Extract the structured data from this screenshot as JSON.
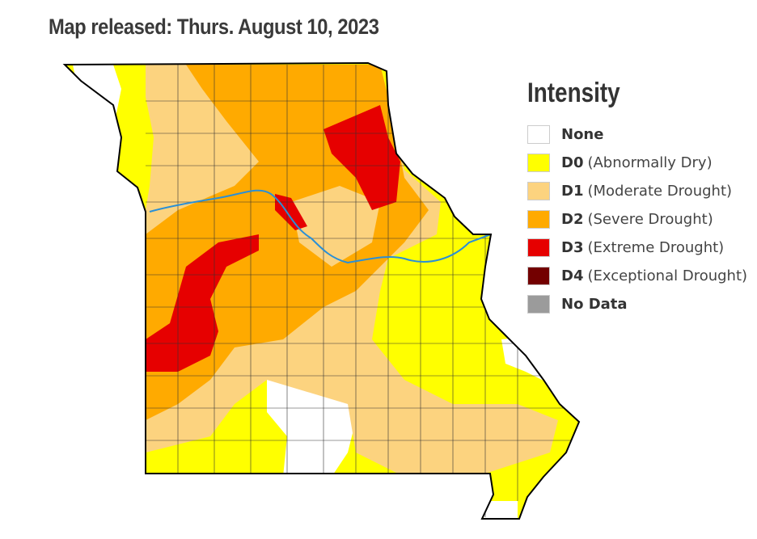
{
  "title": "Map released: Thurs. August 10, 2023",
  "legend": {
    "title": "Intensity",
    "items": [
      {
        "code": "None",
        "desc": "",
        "color": "#ffffff"
      },
      {
        "code": "D0",
        "desc": "(Abnormally Dry)",
        "color": "#ffff00"
      },
      {
        "code": "D1",
        "desc": "(Moderate Drought)",
        "color": "#fcd37f"
      },
      {
        "code": "D2",
        "desc": "(Severe Drought)",
        "color": "#ffaa00"
      },
      {
        "code": "D3",
        "desc": "(Extreme Drought)",
        "color": "#e60000"
      },
      {
        "code": "D4",
        "desc": "(Exceptional Drought)",
        "color": "#730000"
      },
      {
        "code": "No Data",
        "desc": "",
        "color": "#9b9b9b"
      }
    ]
  },
  "map": {
    "region": "Missouri",
    "river_color": "#2a8fd6",
    "border_color": "#000000"
  }
}
